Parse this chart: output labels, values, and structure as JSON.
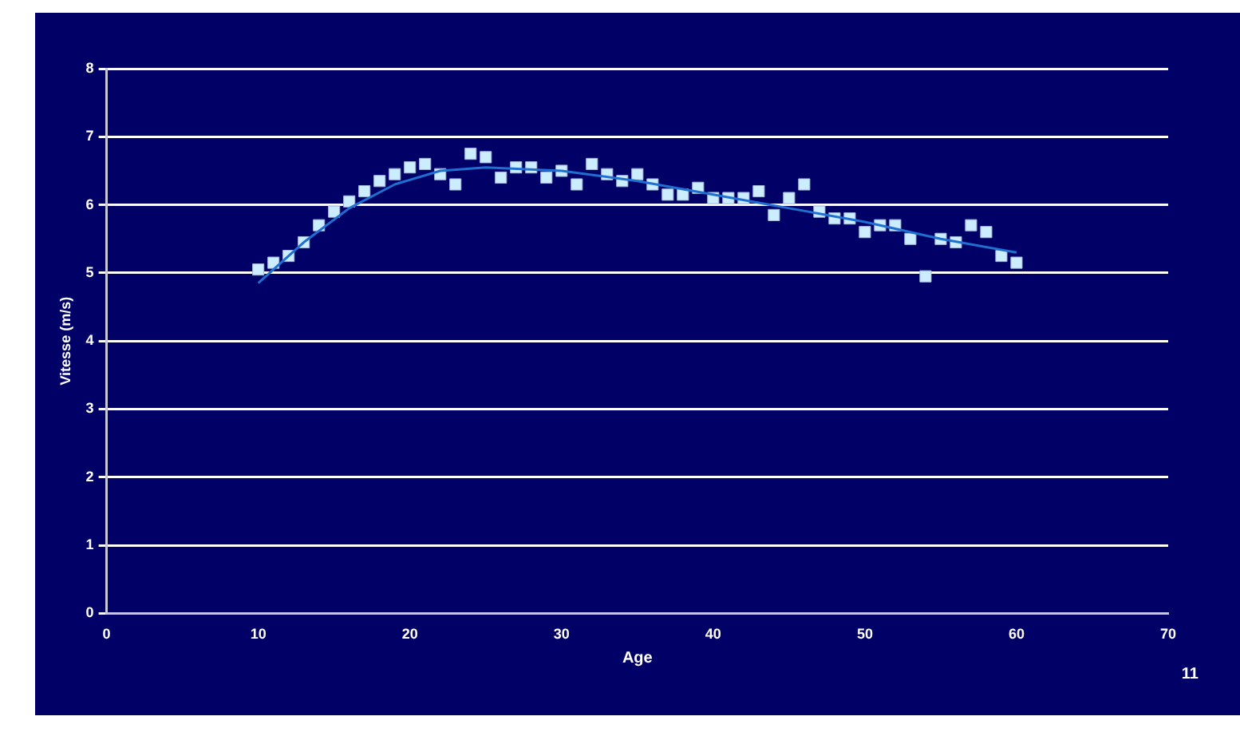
{
  "chart_data": {
    "type": "scatter",
    "xlabel": "Age",
    "ylabel": "Vitesse (m/s)",
    "x": [
      10,
      11,
      12,
      13,
      14,
      15,
      16,
      17,
      18,
      19,
      20,
      21,
      22,
      23,
      24,
      25,
      26,
      27,
      28,
      29,
      30,
      31,
      32,
      33,
      34,
      35,
      36,
      37,
      38,
      39,
      40,
      41,
      42,
      43,
      44,
      45,
      46,
      47,
      48,
      49,
      50,
      51,
      52,
      53,
      54,
      55,
      56,
      57,
      58,
      59,
      60
    ],
    "series": [
      {
        "color": "#ccecff",
        "marker": "square",
        "values": [
          5.05,
          5.15,
          5.25,
          5.45,
          5.7,
          5.9,
          6.05,
          6.2,
          6.35,
          6.45,
          6.55,
          6.6,
          6.45,
          6.3,
          6.75,
          6.7,
          6.4,
          6.55,
          6.55,
          6.4,
          6.5,
          6.3,
          6.6,
          6.45,
          6.35,
          6.45,
          6.3,
          6.15,
          6.15,
          6.25,
          6.1,
          6.1,
          6.1,
          6.2,
          5.85,
          6.1,
          6.3,
          5.9,
          5.8,
          5.8,
          5.6,
          5.7,
          5.7,
          5.5,
          4.95,
          5.5,
          5.45,
          5.7,
          5.6,
          5.25,
          5.15
        ]
      },
      {
        "type": "line",
        "color": "#1f6fd0",
        "marker": "none",
        "line_style": "solid",
        "x": [
          10,
          13,
          16,
          19,
          22,
          25,
          30,
          35,
          40,
          45,
          50,
          55,
          60
        ],
        "values": [
          4.85,
          5.45,
          5.95,
          6.3,
          6.5,
          6.55,
          6.5,
          6.35,
          6.15,
          5.95,
          5.75,
          5.5,
          5.3
        ]
      }
    ],
    "xlim": [
      0,
      70
    ],
    "xticks": [
      0,
      10,
      20,
      30,
      40,
      50,
      60,
      70
    ],
    "ylim": [
      0,
      8
    ],
    "yticks": [
      0,
      1,
      2,
      3,
      4,
      5,
      6,
      7,
      8
    ],
    "grid": "y",
    "legend": false,
    "annotations": [
      "11"
    ]
  }
}
